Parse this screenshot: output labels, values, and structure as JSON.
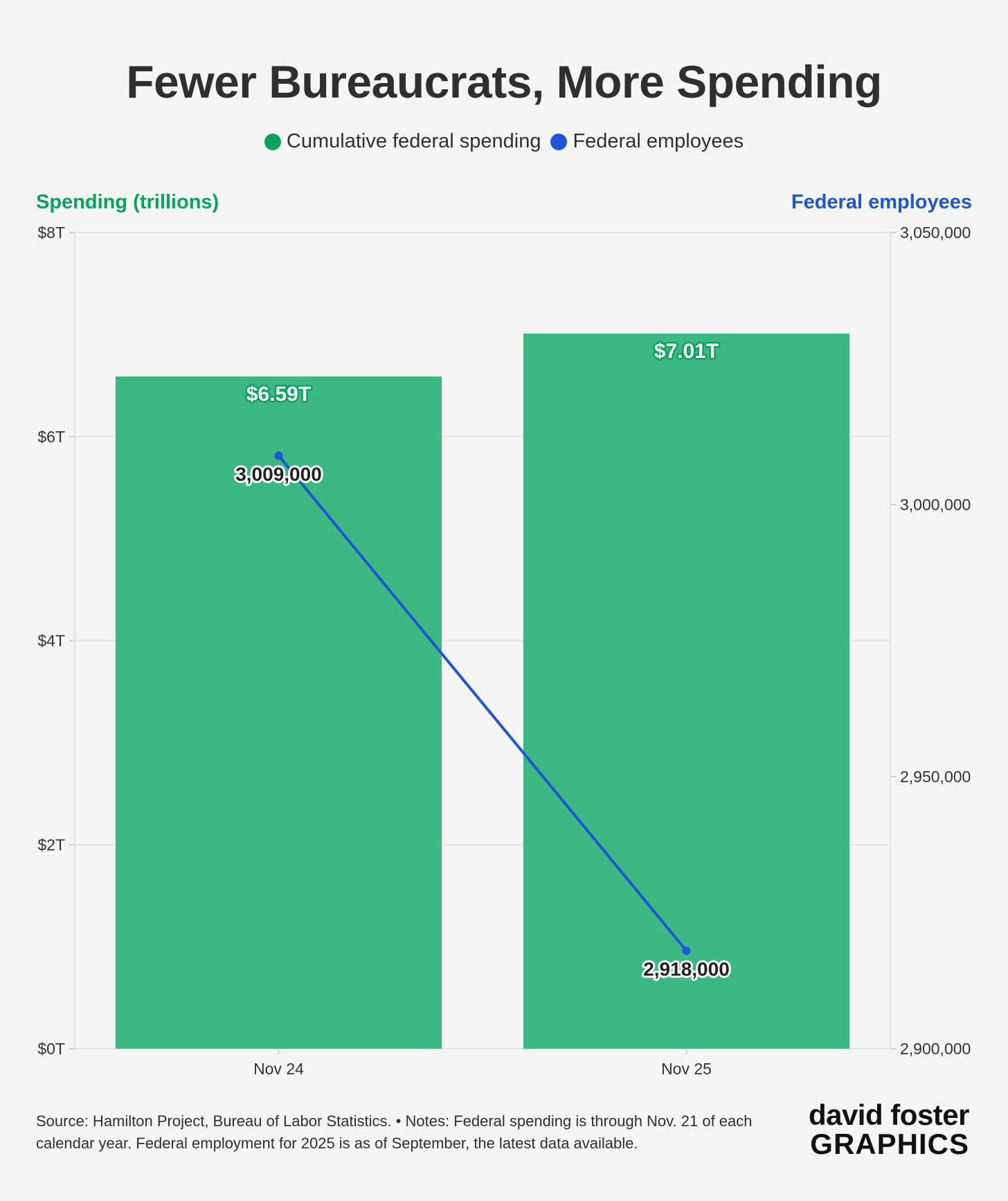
{
  "title": "Fewer Bureaucrats, More Spending",
  "legend": [
    {
      "label": "Cumulative federal spending",
      "color": "#0aa35d"
    },
    {
      "label": "Federal employees",
      "color": "#1f55d8"
    }
  ],
  "footer": {
    "note": "Source: Hamilton Project, Bureau of Labor Statistics. • Notes: Federal spending is through Nov. 21 of each calendar year. Federal employment for 2025 is as of September, the latest data available.",
    "brand_top": "david foster",
    "brand_bottom": "GRAPHICS"
  },
  "chart_data": {
    "type": "bar",
    "categories": [
      "Nov 24",
      "Nov 25"
    ],
    "series": [
      {
        "name": "Cumulative federal spending",
        "kind": "bar",
        "axis": "left",
        "values": [
          6.59,
          7.01
        ],
        "labels": [
          "$6.59T",
          "$7.01T"
        ],
        "color": "#3cb982",
        "label_outline": "#0aa35d"
      },
      {
        "name": "Federal employees",
        "kind": "line",
        "axis": "right",
        "values": [
          3009000,
          2918000
        ],
        "labels": [
          "3,009,000",
          "2,918,000"
        ],
        "color": "#1f55d8"
      }
    ],
    "left_axis": {
      "title": "Spending (trillions)",
      "title_color": "#0aa35d",
      "ylim": [
        0,
        8
      ],
      "ticks": [
        0,
        2,
        4,
        6,
        8
      ],
      "tick_labels": [
        "$0T",
        "$2T",
        "$4T",
        "$6T",
        "$8T"
      ]
    },
    "right_axis": {
      "title": "Federal employees",
      "title_color": "#1f55d8",
      "ylim": [
        2900000,
        3050000
      ],
      "ticks": [
        2900000,
        2950000,
        3000000,
        3050000
      ],
      "tick_labels": [
        "2,900,000",
        "2,950,000",
        "3,000,000",
        "3,050,000"
      ]
    },
    "grid": true
  }
}
